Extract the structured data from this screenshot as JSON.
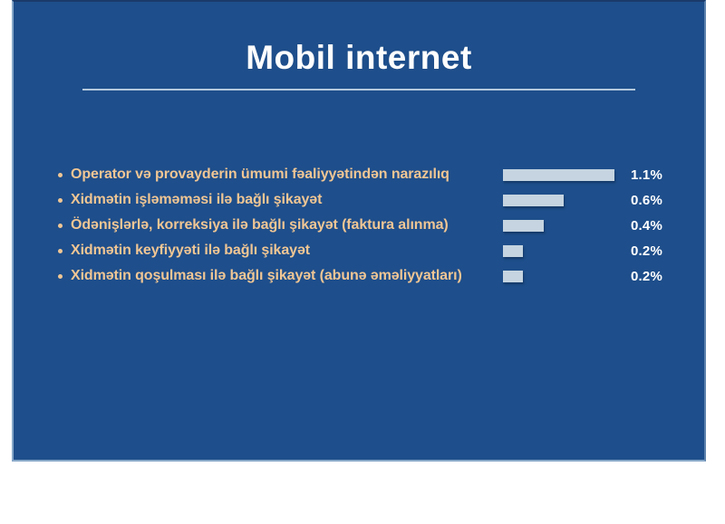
{
  "title": "Mobil internet",
  "panel": {
    "page_background": "#ffffff",
    "background": "#1e4e8b",
    "border_light": "#87a7c8",
    "divider_color": "#cfdeeb"
  },
  "chart_data": {
    "type": "bar",
    "orientation": "horizontal",
    "title": "Mobil internet",
    "categories": [
      "Operator və provayderin ümumi fəaliyyətindən narazılıq",
      "Xidmətin işləməməsi ilə bağlı şikayət",
      "Ödənişlərlə, korreksiya ilə bağlı şikayət (faktura alınma)",
      "Xidmətin keyfiyyəti ilə bağlı şikayət",
      "Xidmətin qoşulması ilə bağlı şikayət (abunə əməliyyatları)"
    ],
    "values": [
      1.1,
      0.6,
      0.4,
      0.2,
      0.2
    ],
    "value_labels": [
      "1.1%",
      "0.6%",
      "0.4%",
      "0.2%",
      "0.2%"
    ],
    "xlim": [
      0,
      1.1
    ],
    "bar_color": "#c5d4e0",
    "category_color": "#f0c694",
    "value_color": "#ffffff",
    "grid": false,
    "legend": false
  }
}
